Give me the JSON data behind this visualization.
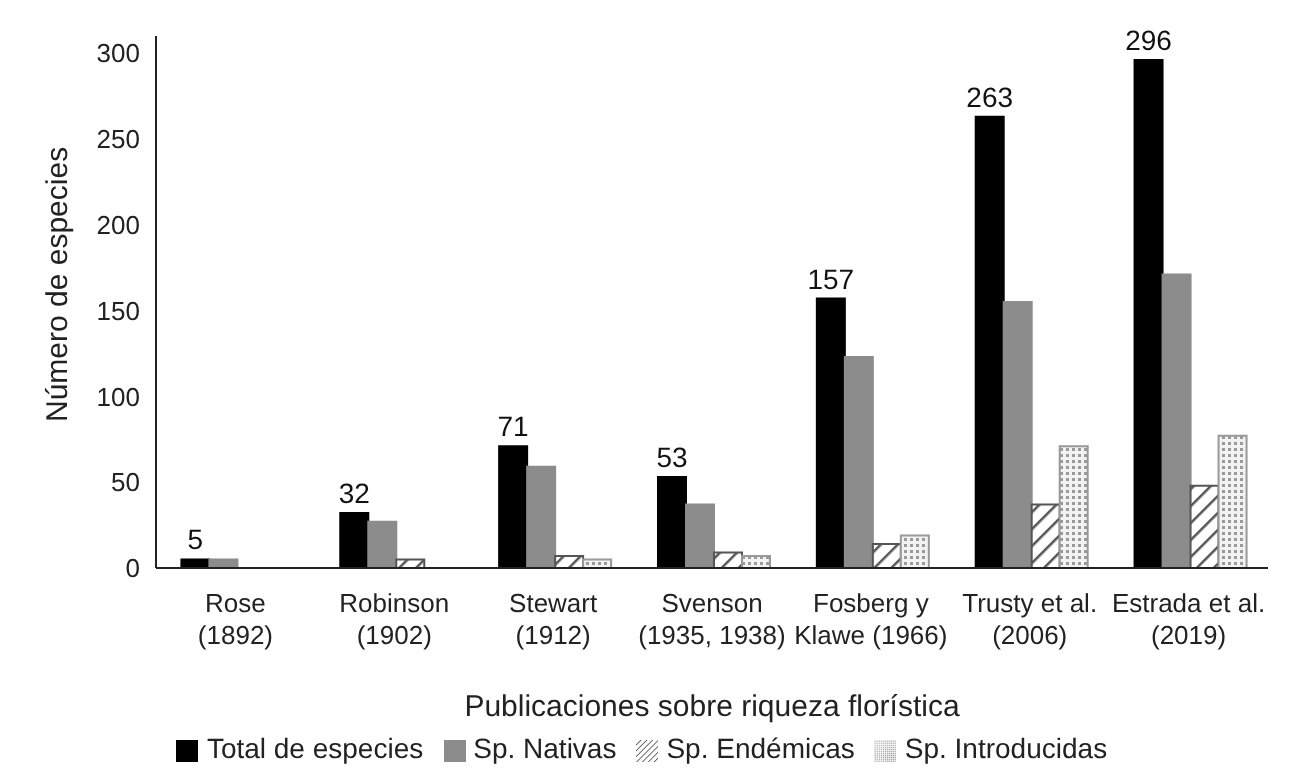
{
  "chart_data": {
    "type": "bar",
    "xlabel": "Publicaciones sobre riqueza florística",
    "ylabel": "Número de especies",
    "categories": [
      "Rose\n(1892)",
      "Robinson\n(1902)",
      "Stewart\n(1912)",
      "Svenson\n(1935, 1938)",
      "Fosberg y\nKlawe (1966)",
      "Trusty et al.\n(2006)",
      "Estrada et al.\n(2019)"
    ],
    "series": [
      {
        "name": "Total de especies",
        "color": "#000000",
        "values": [
          5,
          32,
          71,
          53,
          157,
          263,
          296
        ],
        "value_labels": [
          "5",
          "32",
          "71",
          "53",
          "157",
          "263",
          "296"
        ]
      },
      {
        "name": "Sp. Nativas",
        "color": "#8c8c8c",
        "values": [
          5,
          27,
          59,
          37,
          123,
          155,
          171
        ]
      },
      {
        "name": "Sp. Endémicas",
        "color": "#555555",
        "values": [
          0,
          5,
          7,
          9,
          14,
          37,
          48
        ]
      },
      {
        "name": "Sp. Introducidas",
        "color": "#999999",
        "values": [
          0,
          0,
          5,
          7,
          19,
          71,
          77
        ]
      }
    ],
    "ylim": [
      0,
      310
    ],
    "yticks": [
      0,
      50,
      100,
      150,
      200,
      250,
      300
    ],
    "grid": false,
    "legend": "bottom"
  }
}
